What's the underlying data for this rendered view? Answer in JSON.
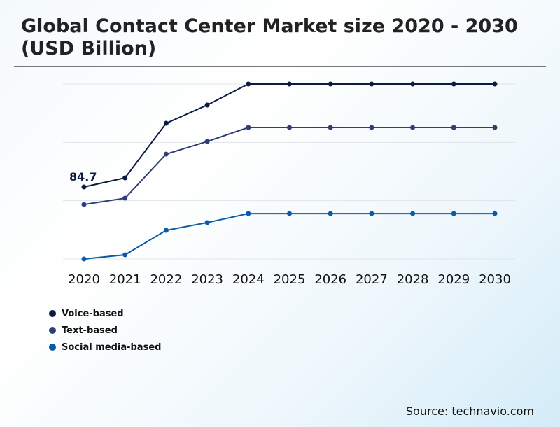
{
  "chart_data": {
    "type": "line",
    "title": "Global Contact Center Market size 2020 - 2030 (USD Billion)",
    "x": [
      "2020",
      "2021",
      "2022",
      "2023",
      "2024",
      "2025",
      "2026",
      "2027",
      "2028",
      "2029",
      "2030"
    ],
    "ylim": [
      0,
      205.6
    ],
    "grid": true,
    "legend_position": "bottom-left",
    "series": [
      {
        "name": "Voice-based",
        "color": "#0b1b42",
        "values": [
          84.7,
          95.4,
          159.5,
          180.9,
          205.6,
          205.6,
          205.6,
          205.6,
          205.6,
          205.6,
          205.6
        ]
      },
      {
        "name": "Text-based",
        "color": "#2e3f78",
        "values": [
          64.1,
          71.5,
          123.3,
          138.1,
          154.6,
          154.6,
          154.6,
          154.6,
          154.6,
          154.6,
          154.6
        ]
      },
      {
        "name": "Social media-based",
        "color": "#0b5aa8",
        "values": [
          0,
          4.9,
          33.7,
          42.8,
          53.4,
          53.4,
          53.4,
          53.4,
          53.4,
          53.4,
          53.4
        ]
      }
    ],
    "annotations": [
      {
        "series": "Voice-based",
        "x": "2020",
        "text": "84.7"
      }
    ]
  },
  "source": "Source: technavio.com"
}
